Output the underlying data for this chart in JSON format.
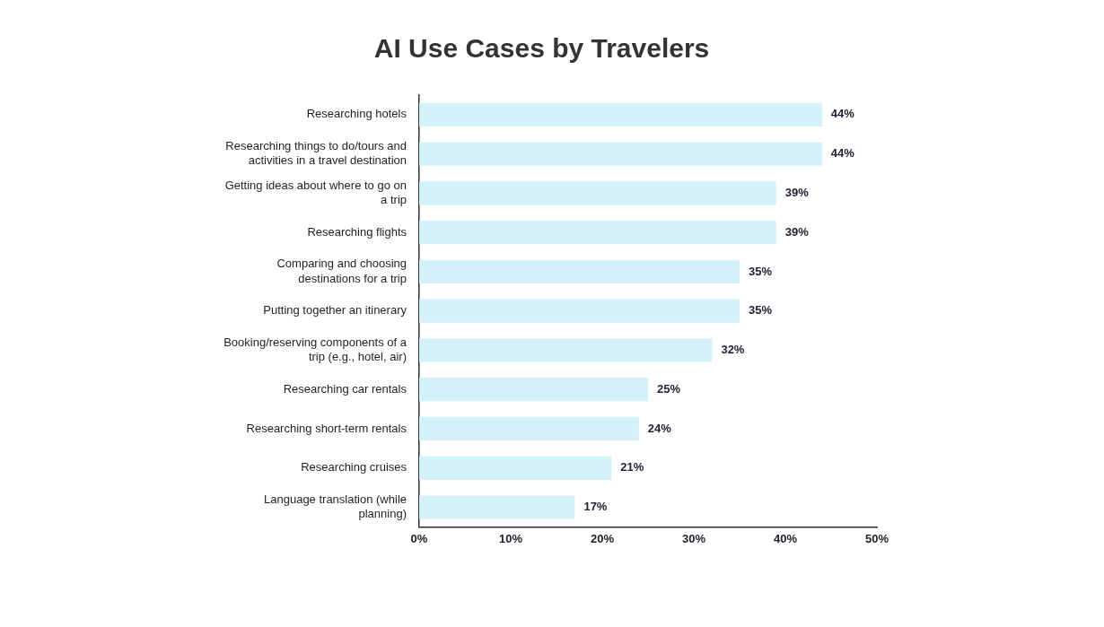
{
  "chart_data": {
    "type": "bar",
    "orientation": "horizontal",
    "title": "AI Use Cases by Travelers",
    "categories": [
      "Researching hotels",
      "Researching things to do/tours and activities in a travel destination",
      "Getting ideas about where to go on a trip",
      "Researching flights",
      "Comparing and choosing destinations for a trip",
      "Putting together an itinerary",
      "Booking/reserving components of a trip (e.g., hotel, air)",
      "Researching car rentals",
      "Researching short-term rentals",
      "Researching cruises",
      "Language translation (while planning)"
    ],
    "values": [
      44,
      44,
      39,
      39,
      35,
      35,
      32,
      25,
      24,
      21,
      17
    ],
    "value_labels": [
      "44%",
      "44%",
      "39%",
      "39%",
      "35%",
      "35%",
      "32%",
      "25%",
      "24%",
      "21%",
      "17%"
    ],
    "color": "#d3f1f8",
    "xlim": [
      0,
      50
    ],
    "xticks": [
      {
        "value": 0,
        "label": "0%"
      },
      {
        "value": 10,
        "label": "10%"
      },
      {
        "value": 20,
        "label": "20%"
      },
      {
        "value": 30,
        "label": "30%"
      },
      {
        "value": 40,
        "label": "40%"
      },
      {
        "value": 50,
        "label": "50%"
      }
    ],
    "grid": false,
    "legend": false
  }
}
